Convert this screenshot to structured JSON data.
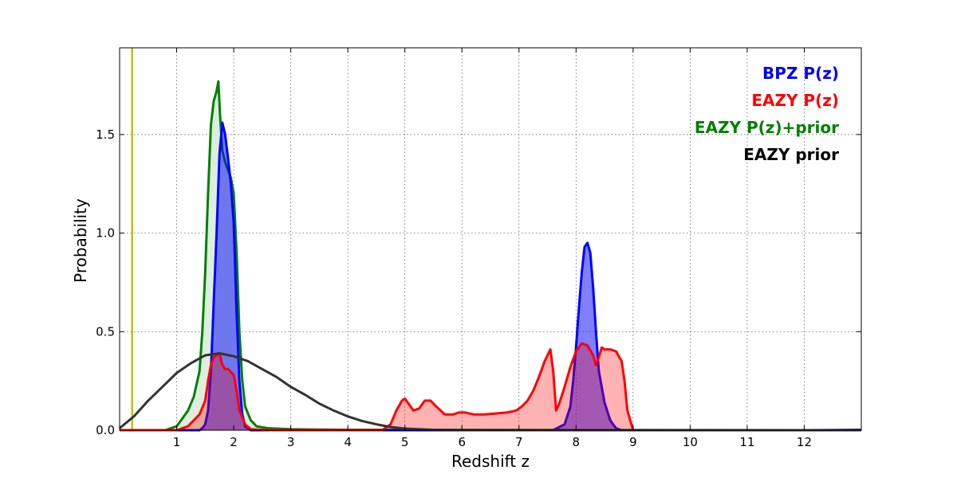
{
  "chart_data": {
    "type": "area",
    "title": "",
    "xlabel": "Redshift z",
    "ylabel": "Probability",
    "xlim": [
      0,
      13
    ],
    "ylim": [
      0,
      1.94
    ],
    "xticks": [
      1,
      2,
      3,
      4,
      5,
      6,
      7,
      8,
      9,
      10,
      11,
      12
    ],
    "yticks": [
      0.0,
      0.5,
      1.0,
      1.5
    ],
    "ytick_labels": [
      "0.0",
      "0.5",
      "1.0",
      "1.5"
    ],
    "grid": true,
    "legend_position": "top-right",
    "vline": {
      "x": 0.22,
      "color": "#bfbf00"
    },
    "series": [
      {
        "name": "EAZY P(z)+prior",
        "color": "#008000",
        "fill": "#ddeedd",
        "points": [
          [
            0,
            0
          ],
          [
            0.8,
            0
          ],
          [
            1.0,
            0.02
          ],
          [
            1.1,
            0.06
          ],
          [
            1.2,
            0.1
          ],
          [
            1.3,
            0.17
          ],
          [
            1.4,
            0.3
          ],
          [
            1.45,
            0.5
          ],
          [
            1.5,
            0.8
          ],
          [
            1.55,
            1.2
          ],
          [
            1.6,
            1.55
          ],
          [
            1.65,
            1.67
          ],
          [
            1.7,
            1.72
          ],
          [
            1.73,
            1.77
          ],
          [
            1.76,
            1.6
          ],
          [
            1.8,
            1.42
          ],
          [
            1.85,
            1.36
          ],
          [
            1.9,
            1.32
          ],
          [
            1.95,
            1.28
          ],
          [
            2.0,
            1.2
          ],
          [
            2.05,
            0.9
          ],
          [
            2.1,
            0.5
          ],
          [
            2.15,
            0.25
          ],
          [
            2.2,
            0.12
          ],
          [
            2.3,
            0.05
          ],
          [
            2.4,
            0.02
          ],
          [
            2.6,
            0.01
          ],
          [
            3.0,
            0.005
          ],
          [
            4.0,
            0.002
          ],
          [
            13,
            0
          ]
        ]
      },
      {
        "name": "BPZ P(z)",
        "color": "#0000ff",
        "fill": "rgba(0,0,255,0.5)",
        "points": [
          [
            0,
            0
          ],
          [
            1.4,
            0
          ],
          [
            1.45,
            0.01
          ],
          [
            1.5,
            0.03
          ],
          [
            1.55,
            0.1
          ],
          [
            1.6,
            0.3
          ],
          [
            1.65,
            0.65
          ],
          [
            1.7,
            1.0
          ],
          [
            1.75,
            1.4
          ],
          [
            1.8,
            1.56
          ],
          [
            1.85,
            1.5
          ],
          [
            1.9,
            1.38
          ],
          [
            1.95,
            1.25
          ],
          [
            2.0,
            1.05
          ],
          [
            2.05,
            0.6
          ],
          [
            2.1,
            0.25
          ],
          [
            2.15,
            0.08
          ],
          [
            2.2,
            0.02
          ],
          [
            2.3,
            0
          ],
          [
            7.6,
            0
          ],
          [
            7.8,
            0.03
          ],
          [
            7.9,
            0.12
          ],
          [
            7.95,
            0.25
          ],
          [
            8.0,
            0.42
          ],
          [
            8.05,
            0.62
          ],
          [
            8.1,
            0.8
          ],
          [
            8.15,
            0.93
          ],
          [
            8.2,
            0.95
          ],
          [
            8.25,
            0.9
          ],
          [
            8.3,
            0.72
          ],
          [
            8.35,
            0.5
          ],
          [
            8.4,
            0.3
          ],
          [
            8.5,
            0.14
          ],
          [
            8.6,
            0.05
          ],
          [
            8.7,
            0.01
          ],
          [
            8.8,
            0
          ],
          [
            12.0,
            0
          ],
          [
            13.0,
            0.002
          ]
        ]
      },
      {
        "name": "EAZY P(z)",
        "color": "#ff0000",
        "fill": "rgba(255,0,0,0.3)",
        "points": [
          [
            0,
            0
          ],
          [
            1.0,
            0
          ],
          [
            1.2,
            0.02
          ],
          [
            1.4,
            0.08
          ],
          [
            1.5,
            0.15
          ],
          [
            1.55,
            0.25
          ],
          [
            1.6,
            0.33
          ],
          [
            1.65,
            0.37
          ],
          [
            1.7,
            0.38
          ],
          [
            1.75,
            0.39
          ],
          [
            1.8,
            0.33
          ],
          [
            1.85,
            0.31
          ],
          [
            1.9,
            0.31
          ],
          [
            2.0,
            0.28
          ],
          [
            2.05,
            0.2
          ],
          [
            2.1,
            0.1
          ],
          [
            2.2,
            0.03
          ],
          [
            2.3,
            0.005
          ],
          [
            2.6,
            0
          ],
          [
            4.6,
            0
          ],
          [
            4.75,
            0.03
          ],
          [
            4.85,
            0.1
          ],
          [
            4.95,
            0.15
          ],
          [
            5.0,
            0.16
          ],
          [
            5.05,
            0.14
          ],
          [
            5.15,
            0.1
          ],
          [
            5.25,
            0.11
          ],
          [
            5.35,
            0.15
          ],
          [
            5.45,
            0.15
          ],
          [
            5.55,
            0.12
          ],
          [
            5.7,
            0.08
          ],
          [
            5.85,
            0.08
          ],
          [
            5.95,
            0.09
          ],
          [
            6.05,
            0.09
          ],
          [
            6.2,
            0.08
          ],
          [
            6.4,
            0.08
          ],
          [
            6.6,
            0.085
          ],
          [
            6.8,
            0.09
          ],
          [
            6.95,
            0.1
          ],
          [
            7.05,
            0.12
          ],
          [
            7.15,
            0.15
          ],
          [
            7.25,
            0.2
          ],
          [
            7.35,
            0.27
          ],
          [
            7.45,
            0.35
          ],
          [
            7.55,
            0.41
          ],
          [
            7.6,
            0.3
          ],
          [
            7.65,
            0.1
          ],
          [
            7.7,
            0.13
          ],
          [
            7.8,
            0.22
          ],
          [
            7.9,
            0.32
          ],
          [
            8.0,
            0.4
          ],
          [
            8.1,
            0.44
          ],
          [
            8.2,
            0.43
          ],
          [
            8.3,
            0.38
          ],
          [
            8.35,
            0.33
          ],
          [
            8.4,
            0.37
          ],
          [
            8.45,
            0.42
          ],
          [
            8.5,
            0.41
          ],
          [
            8.6,
            0.41
          ],
          [
            8.7,
            0.4
          ],
          [
            8.8,
            0.35
          ],
          [
            8.85,
            0.25
          ],
          [
            8.9,
            0.1
          ],
          [
            8.95,
            0.05
          ],
          [
            9.0,
            0
          ],
          [
            13,
            0
          ]
        ]
      },
      {
        "name": "EAZY prior",
        "color": "#333333",
        "fill": "",
        "points": [
          [
            0,
            0.01
          ],
          [
            0.25,
            0.07
          ],
          [
            0.5,
            0.15
          ],
          [
            0.75,
            0.22
          ],
          [
            1.0,
            0.29
          ],
          [
            1.25,
            0.34
          ],
          [
            1.5,
            0.38
          ],
          [
            1.75,
            0.39
          ],
          [
            2.0,
            0.375
          ],
          [
            2.25,
            0.35
          ],
          [
            2.5,
            0.31
          ],
          [
            2.75,
            0.27
          ],
          [
            3.0,
            0.22
          ],
          [
            3.25,
            0.18
          ],
          [
            3.5,
            0.135
          ],
          [
            3.75,
            0.1
          ],
          [
            4.0,
            0.07
          ],
          [
            4.25,
            0.047
          ],
          [
            4.5,
            0.03
          ],
          [
            4.75,
            0.016
          ],
          [
            5.0,
            0.008
          ],
          [
            5.5,
            0.002
          ],
          [
            6.0,
            0
          ],
          [
            13,
            0
          ]
        ]
      }
    ],
    "legend": [
      {
        "label": "BPZ P(z)",
        "color": "#0000ff"
      },
      {
        "label": "EAZY P(z)",
        "color": "#ff0000"
      },
      {
        "label": "EAZY P(z)+prior",
        "color": "#008000"
      },
      {
        "label": "EAZY prior",
        "color": "#000000"
      }
    ]
  }
}
